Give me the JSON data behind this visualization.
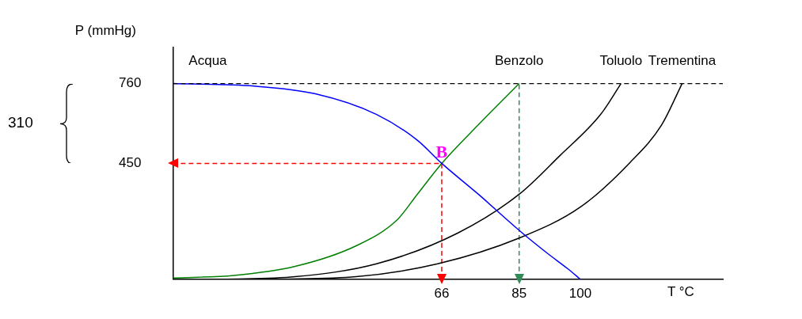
{
  "chart_data": {
    "type": "line",
    "xlabel": "T °C",
    "ylabel": "P (mmHg)",
    "xlim": [
      0,
      135
    ],
    "xticks": [
      66,
      85,
      100
    ],
    "ylim": [
      0,
      900
    ],
    "yticks": [
      450,
      760
    ],
    "grid": false,
    "legend": false,
    "marker": "none",
    "line_style": "solid",
    "series": [
      {
        "name": "Acqua",
        "color": "#0000ff",
        "x": [
          0,
          20,
          35,
          50,
          60,
          66,
          75,
          85,
          92,
          97,
          100
        ],
        "values": [
          760,
          750,
          720,
          640,
          540,
          450,
          330,
          190,
          100,
          40,
          0
        ]
      },
      {
        "name": "Benzolo",
        "color": "#008000",
        "x": [
          0,
          15,
          30,
          45,
          55,
          60,
          66,
          75,
          85
        ],
        "values": [
          5,
          15,
          50,
          130,
          230,
          330,
          450,
          600,
          760
        ]
      },
      {
        "name": "Toluolo",
        "color": "#000000",
        "x": [
          12,
          30,
          50,
          70,
          85,
          95,
          105,
          110
        ],
        "values": [
          0,
          10,
          60,
          180,
          330,
          480,
          640,
          760
        ]
      },
      {
        "name": "Trementina",
        "color": "#000000",
        "x": [
          25,
          45,
          65,
          85,
          100,
          112,
          120,
          125
        ],
        "values": [
          0,
          10,
          60,
          160,
          280,
          450,
          600,
          760
        ]
      },
      {
        "color": "#ff0000",
        "line_style": "dashed",
        "marker": "triangle",
        "x": [
          0,
          66
        ],
        "values": [
          450,
          450
        ]
      },
      {
        "color": "#ff0000",
        "line_style": "dashed",
        "marker": "triangle",
        "x": [
          66,
          66
        ],
        "values": [
          0,
          450
        ]
      },
      {
        "color": "#2e8b57",
        "line_style": "dashed",
        "marker": "triangle",
        "x": [
          85,
          85
        ],
        "values": [
          0,
          760
        ]
      }
    ],
    "ref_lines": [
      {
        "axis": "y",
        "value": 760,
        "color": "#000000",
        "line_style": "dashed"
      }
    ],
    "annotations": [
      {
        "text": "B",
        "x": 66,
        "y": 450
      },
      "310"
    ]
  }
}
